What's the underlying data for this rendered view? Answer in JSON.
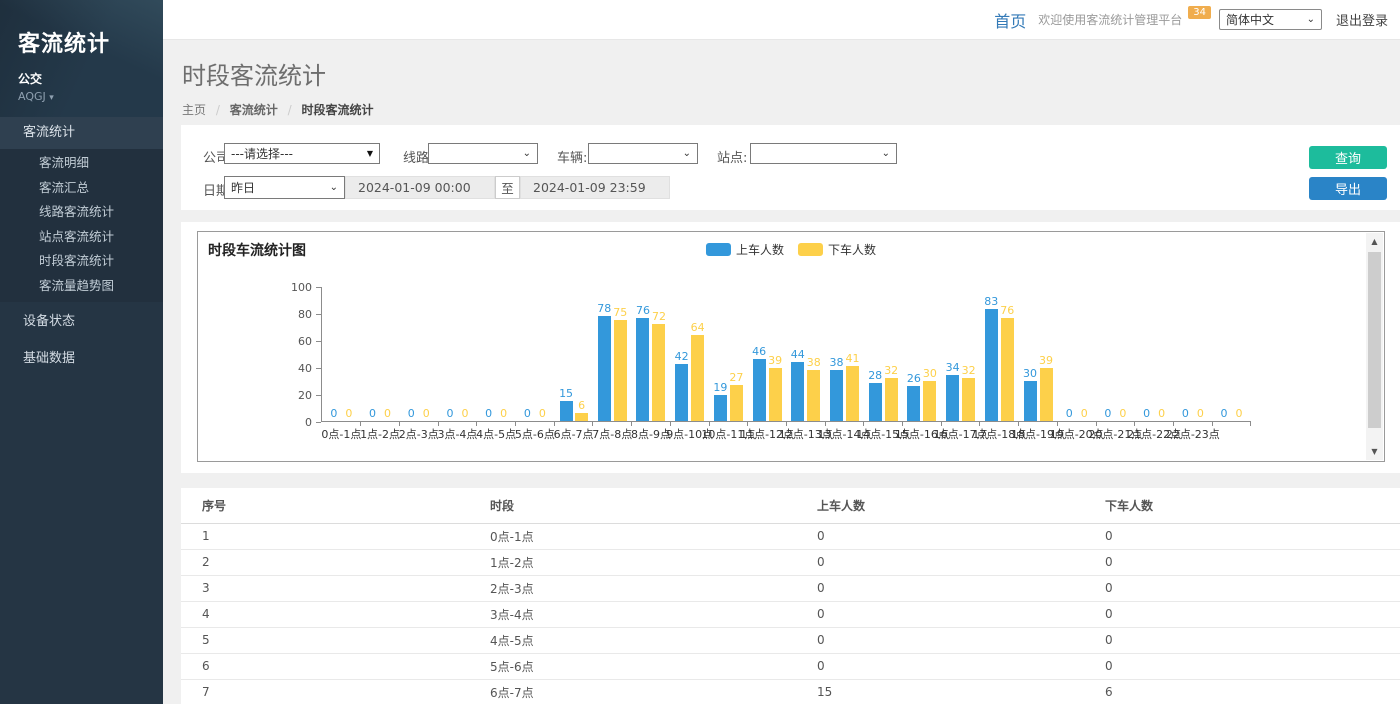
{
  "sidebar": {
    "brand": "客流统计",
    "org": "公交",
    "user": "AQGJ",
    "menu": [
      {
        "label": "客流统计",
        "children": [
          "客流明细",
          "客流汇总",
          "线路客流统计",
          "站点客流统计",
          "时段客流统计",
          "客流量趋势图"
        ]
      },
      {
        "label": "设备状态"
      },
      {
        "label": "基础数据"
      }
    ]
  },
  "topbar": {
    "home": "首页",
    "welcome": "欢迎使用客流统计管理平台",
    "badge": "34",
    "language": "简体中文",
    "logout": "退出登录"
  },
  "page": {
    "title": "时段客流统计",
    "breadcrumb": [
      "主页",
      "客流统计",
      "时段客流统计"
    ]
  },
  "filters": {
    "company_label": "公司:",
    "company_value": "---请选择---",
    "line_label": "线路:",
    "line_value": "",
    "vehicle_label": "车辆:",
    "vehicle_value": "",
    "station_label": "站点:",
    "station_value": "",
    "date_label": "日期:",
    "date_preset": "昨日",
    "date_start": "2024-01-09 00:00",
    "date_to": "至",
    "date_end": "2024-01-09 23:59",
    "query_button": "查询",
    "export_button": "导出"
  },
  "chart_data": {
    "type": "bar",
    "title": "时段车流统计图",
    "categories": [
      "0点-1点",
      "1点-2点",
      "2点-3点",
      "3点-4点",
      "4点-5点",
      "5点-6点",
      "6点-7点",
      "7点-8点",
      "8点-9点",
      "9点-10点",
      "10点-11点",
      "11点-12点",
      "12点-13点",
      "13点-14点",
      "14点-15点",
      "15点-16点",
      "16点-17点",
      "17点-18点",
      "18点-19点",
      "19点-20点",
      "20点-21点",
      "21点-22点",
      "22点-23点",
      "23点-24点"
    ],
    "series": [
      {
        "name": "上车人数",
        "color": "#3398db",
        "values": [
          0,
          0,
          0,
          0,
          0,
          0,
          15,
          78,
          76,
          42,
          19,
          46,
          44,
          38,
          28,
          26,
          34,
          83,
          30,
          0,
          0,
          0,
          0,
          0
        ]
      },
      {
        "name": "下车人数",
        "color": "#fdd04a",
        "values": [
          0,
          0,
          0,
          0,
          0,
          0,
          6,
          75,
          72,
          64,
          27,
          39,
          38,
          41,
          32,
          30,
          32,
          76,
          39,
          0,
          0,
          0,
          0,
          0
        ]
      }
    ],
    "ylim": [
      0,
      100
    ],
    "yticks": [
      100,
      80,
      60,
      40,
      20,
      0
    ],
    "legend_position": "top-center",
    "grid": false
  },
  "table": {
    "columns": [
      "序号",
      "时段",
      "上车人数",
      "下车人数"
    ],
    "rows": [
      [
        "1",
        "0点-1点",
        "0",
        "0"
      ],
      [
        "2",
        "1点-2点",
        "0",
        "0"
      ],
      [
        "3",
        "2点-3点",
        "0",
        "0"
      ],
      [
        "4",
        "3点-4点",
        "0",
        "0"
      ],
      [
        "5",
        "4点-5点",
        "0",
        "0"
      ],
      [
        "6",
        "5点-6点",
        "0",
        "0"
      ],
      [
        "7",
        "6点-7点",
        "15",
        "6"
      ]
    ]
  },
  "colors": {
    "boarding": "#3398db",
    "alighting": "#fdd04a",
    "query_button": "#1dbc9c",
    "export_button": "#2a84c7",
    "badge": "#f0ad4e",
    "sidebar_bg": "#253544",
    "home_link": "#337ab7"
  }
}
